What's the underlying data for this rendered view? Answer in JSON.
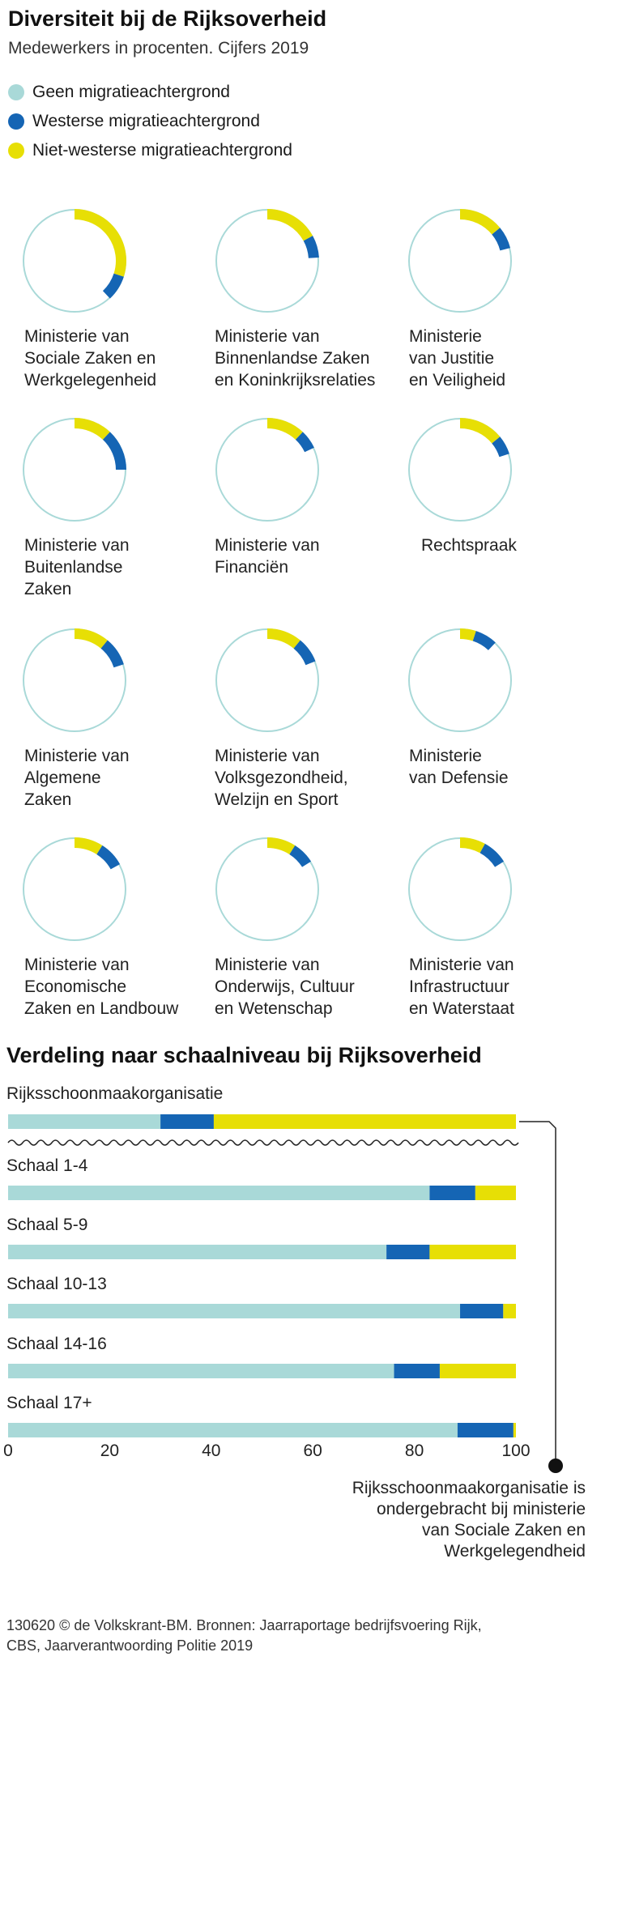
{
  "title": "Diversiteit bij de Rijksoverheid",
  "subtitle": "Medewerkers in procenten. Cijfers 2019",
  "colors": {
    "geen": "#a9d9d8",
    "westerse": "#1565b4",
    "niet_westerse": "#e7df05"
  },
  "legend": [
    {
      "label": "Geen migratieachtergrond",
      "color": "#a9d9d8"
    },
    {
      "label": "Westerse migratieachtergrond",
      "color": "#1565b4"
    },
    {
      "label": "Niet-westerse migratieachtergrond",
      "color": "#e7df05"
    }
  ],
  "note": [
    "Rijksschoonmaakorganisatie is",
    "ondergebracht bij ministerie",
    "van Sociale Zaken en",
    "Werkgelegendheid"
  ],
  "footer": [
    "130620 © de Volkskrant-BM. Bronnen: Jaarraportage bedrijfsvoering Rijk,",
    "CBS, Jaarverantwoording Politie 2019"
  ],
  "chart_data": [
    {
      "type": "pie",
      "series_order": [
        "Geen migratieachtergrond",
        "Westerse migratieachtergrond",
        "Niet-westerse migratieachtergrond"
      ],
      "items": [
        {
          "label": [
            "Ministerie van",
            "Sociale Zaken en",
            "Werkgelegenheid"
          ],
          "geen": 62,
          "westerse": 8,
          "niet_westerse": 30
        },
        {
          "label": [
            "Ministerie van",
            "Binnenlandse Zaken",
            "en Koninkrijksrelaties"
          ],
          "geen": 76,
          "westerse": 7,
          "niet_westerse": 17
        },
        {
          "label": [
            "Ministerie",
            "van Justitie",
            "en Veiligheid"
          ],
          "geen": 79,
          "westerse": 7,
          "niet_westerse": 14
        },
        {
          "label": [
            "Ministerie van",
            "Buitenlandse",
            "Zaken"
          ],
          "geen": 75,
          "westerse": 13,
          "niet_westerse": 12
        },
        {
          "label": [
            "Ministerie van",
            "Financiën"
          ],
          "geen": 82,
          "westerse": 6,
          "niet_westerse": 12
        },
        {
          "label": [
            "Rechtspraak"
          ],
          "geen": 80,
          "westerse": 6,
          "niet_westerse": 14
        },
        {
          "label": [
            "Ministerie van",
            "Algemene",
            "Zaken"
          ],
          "geen": 80,
          "westerse": 9,
          "niet_westerse": 11
        },
        {
          "label": [
            "Ministerie van",
            "Volksgezondheid,",
            "Welzijn en Sport"
          ],
          "geen": 81,
          "westerse": 8,
          "niet_westerse": 11
        },
        {
          "label": [
            "Ministerie",
            "van Defensie"
          ],
          "geen": 88,
          "westerse": 7,
          "niet_westerse": 5
        },
        {
          "label": [
            "Ministerie van",
            "Economische",
            "Zaken en Landbouw"
          ],
          "geen": 83,
          "westerse": 8,
          "niet_westerse": 9
        },
        {
          "label": [
            "Ministerie van",
            "Onderwijs, Cultuur",
            "en Wetenschap"
          ],
          "geen": 84,
          "westerse": 7,
          "niet_westerse": 9
        },
        {
          "label": [
            "Ministerie van",
            "Infrastructuur",
            "en Waterstaat"
          ],
          "geen": 84,
          "westerse": 8,
          "niet_westerse": 8
        }
      ]
    },
    {
      "type": "bar",
      "title": "Verdeling naar schaalniveau bij Rijksoverheid",
      "orientation": "horizontal-stacked",
      "xlim": [
        0,
        100
      ],
      "ticks": [
        0,
        20,
        40,
        60,
        80,
        100
      ],
      "categories": [
        "Rijksschoonmaakorganisatie",
        "Schaal 1-4",
        "Schaal 5-9",
        "Schaal 10-13",
        "Schaal 14-16",
        "Schaal 17+"
      ],
      "series": [
        {
          "name": "Geen migratieachtergrond",
          "values": [
            30,
            83,
            74.5,
            89,
            76,
            88.5
          ]
        },
        {
          "name": "Westerse migratieachtergrond",
          "values": [
            10.5,
            9,
            8.5,
            8.5,
            9,
            11
          ]
        },
        {
          "name": "Niet-westerse migratieachtergrond",
          "values": [
            59.5,
            8,
            17,
            2.5,
            15,
            0.5
          ]
        }
      ]
    }
  ]
}
